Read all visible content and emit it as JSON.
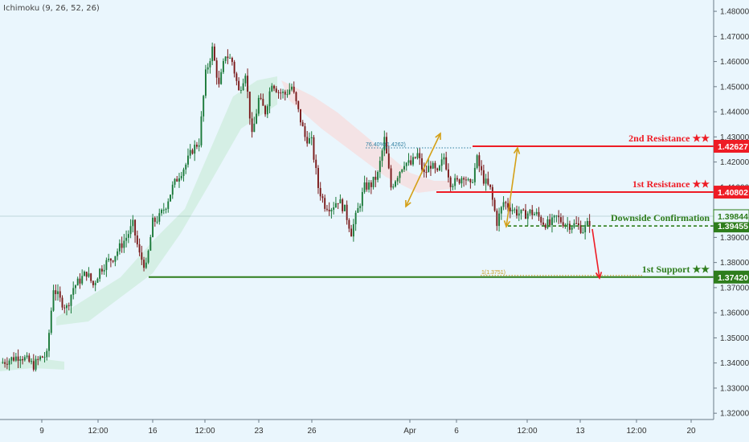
{
  "indicator": {
    "label": "Ichimoku (9, 26, 52, 26)"
  },
  "colors": {
    "background": "#eaf6fd",
    "resistance": "#ee1c25",
    "support": "#2e7d1c",
    "arrow_gold": "#d4a017",
    "arrow_red": "#ee1c25",
    "candle_up": "#1b7a3a",
    "candle_down": "#7a1a1a",
    "cloud_bull": "#cfeede",
    "cloud_bear": "#f6dede"
  },
  "chart_data": {
    "type": "candlestick",
    "symbol_note": "",
    "y_axis": {
      "ticks": [
        1.48,
        1.47,
        1.46,
        1.45,
        1.44,
        1.43,
        1.42,
        1.41,
        1.4,
        1.39,
        1.38,
        1.37,
        1.36,
        1.35,
        1.34,
        1.33,
        1.32
      ],
      "tick_labels": [
        "1.48000",
        "1.47000",
        "1.46000",
        "1.45000",
        "1.44000",
        "1.43000",
        "1.42000",
        "1.41000",
        "1.40000",
        "1.39000",
        "1.38000",
        "1.37000",
        "1.36000",
        "1.35000",
        "1.34000",
        "1.33000",
        "1.32000"
      ],
      "range": [
        1.3175,
        1.4845
      ]
    },
    "x_axis": {
      "tick_labels": [
        "9",
        "12:00",
        "16",
        "12:00",
        "23",
        "26",
        "Apr",
        "6",
        "12:00",
        "13",
        "12:00",
        "20"
      ]
    },
    "price": [
      1.34,
      1.341,
      1.342,
      1.343,
      1.341,
      1.339,
      1.342,
      1.343,
      1.37,
      1.365,
      1.362,
      1.37,
      1.373,
      1.376,
      1.371,
      1.377,
      1.38,
      1.382,
      1.386,
      1.39,
      1.395,
      1.383,
      1.378,
      1.396,
      1.398,
      1.403,
      1.41,
      1.415,
      1.419,
      1.425,
      1.428,
      1.455,
      1.465,
      1.45,
      1.463,
      1.46,
      1.448,
      1.456,
      1.43,
      1.445,
      1.44,
      1.452,
      1.448,
      1.447,
      1.45,
      1.44,
      1.43,
      1.428,
      1.41,
      1.403,
      1.402,
      1.405,
      1.401,
      1.392,
      1.401,
      1.41,
      1.411,
      1.415,
      1.429,
      1.41,
      1.415,
      1.42,
      1.419,
      1.423,
      1.415,
      1.419,
      1.415,
      1.422,
      1.412,
      1.412,
      1.415,
      1.41,
      1.421,
      1.413,
      1.409,
      1.396,
      1.404,
      1.402,
      1.4,
      1.399,
      1.4,
      1.399,
      1.396,
      1.395,
      1.398,
      1.396,
      1.395,
      1.395,
      1.393,
      1.396
    ],
    "levels": [
      {
        "name": "2nd Resistance ★★",
        "value": 1.42627,
        "label": "1.42627",
        "type": "resistance"
      },
      {
        "name": "1st Resistance ★★",
        "value": 1.40802,
        "label": "1.40802",
        "type": "resistance"
      },
      {
        "name": "Downside Confirmation",
        "value": 1.39455,
        "label": "1.39455",
        "type": "confirmation"
      },
      {
        "name": "1st Support ★★",
        "value": 1.3742,
        "label": "1.37420",
        "type": "support"
      }
    ],
    "current_price": {
      "value": 1.39844,
      "label": "1.39844"
    },
    "fib_annotations": [
      {
        "text": "76.40%(1.4262)",
        "value": 1.42627
      },
      {
        "text": "1(1.3751)",
        "value": 1.3742
      }
    ]
  }
}
